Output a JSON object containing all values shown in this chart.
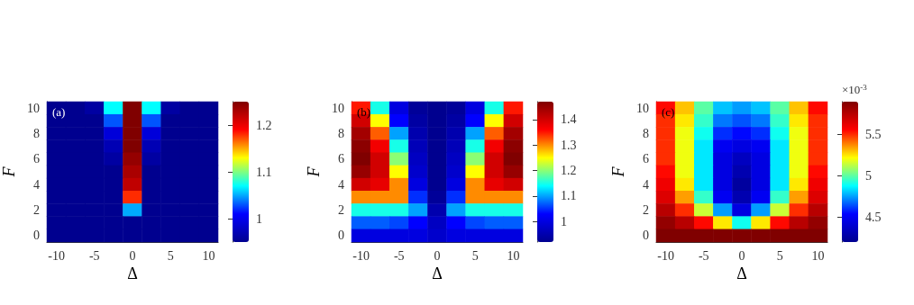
{
  "chart_data": [
    {
      "type": "heatmap",
      "xlabel": "Δ",
      "ylabel": "F",
      "annotations": [
        "(a)"
      ],
      "categories": [
        "-10",
        null,
        "-5",
        null,
        "0",
        null,
        "5",
        null,
        "10"
      ],
      "y_categories": [
        "10",
        null,
        "8",
        null,
        "6",
        null,
        "4",
        null,
        "2",
        null,
        "0"
      ],
      "cells": [
        [
          0.95,
          0.95,
          0.96,
          1.07,
          1.25,
          1.07,
          0.96,
          0.95,
          0.95
        ],
        [
          0.95,
          0.95,
          0.95,
          1.03,
          1.25,
          1.03,
          0.95,
          0.95,
          0.95
        ],
        [
          0.95,
          0.95,
          0.95,
          0.99,
          1.25,
          0.99,
          0.95,
          0.95,
          0.95
        ],
        [
          0.95,
          0.95,
          0.95,
          0.97,
          1.25,
          0.97,
          0.95,
          0.95,
          0.95
        ],
        [
          0.95,
          0.95,
          0.95,
          0.96,
          1.24,
          0.96,
          0.95,
          0.95,
          0.95
        ],
        [
          0.95,
          0.95,
          0.95,
          0.95,
          1.23,
          0.95,
          0.95,
          0.95,
          0.95
        ],
        [
          0.95,
          0.95,
          0.95,
          0.95,
          1.22,
          0.95,
          0.95,
          0.95,
          0.95
        ],
        [
          0.95,
          0.95,
          0.95,
          0.95,
          1.18,
          0.95,
          0.95,
          0.95,
          0.95
        ],
        [
          0.95,
          0.95,
          0.95,
          0.95,
          1.05,
          0.95,
          0.95,
          0.95,
          0.95
        ],
        [
          0.95,
          0.95,
          0.95,
          0.95,
          0.95,
          0.95,
          0.95,
          0.95,
          0.95
        ],
        [
          0.95,
          0.95,
          0.95,
          0.95,
          0.95,
          0.95,
          0.95,
          0.95,
          0.95
        ]
      ],
      "clim": [
        0.95,
        1.25
      ],
      "cticks": [
        1,
        1.1,
        1.2
      ]
    },
    {
      "type": "heatmap",
      "xlabel": "Δ",
      "ylabel": "F",
      "annotations": [
        "(b)"
      ],
      "categories": [
        "-10",
        null,
        "-5",
        null,
        "0",
        null,
        "5",
        null,
        "10"
      ],
      "y_categories": [
        "10",
        null,
        "8",
        null,
        "6",
        null,
        "4",
        null,
        "2",
        null,
        "0"
      ],
      "cells": [
        [
          1.35,
          1.15,
          1.0,
          0.93,
          0.92,
          0.93,
          1.0,
          1.15,
          1.35
        ],
        [
          1.4,
          1.25,
          1.03,
          0.94,
          0.92,
          0.94,
          1.03,
          1.25,
          1.4
        ],
        [
          1.44,
          1.32,
          1.1,
          0.95,
          0.92,
          0.95,
          1.1,
          1.32,
          1.44
        ],
        [
          1.46,
          1.37,
          1.15,
          0.96,
          0.92,
          0.96,
          1.15,
          1.37,
          1.46
        ],
        [
          1.47,
          1.4,
          1.2,
          0.97,
          0.92,
          0.97,
          1.2,
          1.4,
          1.47
        ],
        [
          1.45,
          1.4,
          1.25,
          0.98,
          0.92,
          0.98,
          1.25,
          1.4,
          1.45
        ],
        [
          1.4,
          1.38,
          1.3,
          1.0,
          0.92,
          1.0,
          1.3,
          1.38,
          1.4
        ],
        [
          1.3,
          1.3,
          1.3,
          1.05,
          0.93,
          1.05,
          1.3,
          1.3,
          1.3
        ],
        [
          1.15,
          1.15,
          1.15,
          1.1,
          0.95,
          1.1,
          1.15,
          1.15,
          1.15
        ],
        [
          1.07,
          1.07,
          1.06,
          1.03,
          0.97,
          1.03,
          1.06,
          1.07,
          1.07
        ],
        [
          1.0,
          1.0,
          1.0,
          1.0,
          0.98,
          1.0,
          1.0,
          1.0,
          1.0
        ]
      ],
      "clim": [
        0.92,
        1.47
      ],
      "cticks": [
        1,
        1.1,
        1.2,
        1.3,
        1.4
      ]
    },
    {
      "type": "heatmap",
      "xlabel": "Δ",
      "ylabel": "F",
      "annotations": [
        "(c)"
      ],
      "clabel": "×10$^{-3}$",
      "categories": [
        "-10",
        null,
        "-5",
        null,
        "0",
        null,
        "5",
        null,
        "10"
      ],
      "y_categories": [
        "10",
        null,
        "8",
        null,
        "6",
        null,
        "4",
        null,
        "2",
        null,
        "0"
      ],
      "cells": [
        [
          5.55,
          5.3,
          5.0,
          4.8,
          4.75,
          4.8,
          5.0,
          5.3,
          5.55
        ],
        [
          5.5,
          5.25,
          4.95,
          4.7,
          4.65,
          4.7,
          4.95,
          5.25,
          5.5
        ],
        [
          5.5,
          5.2,
          4.9,
          4.6,
          4.55,
          4.6,
          4.9,
          5.2,
          5.5
        ],
        [
          5.5,
          5.2,
          4.85,
          4.5,
          4.45,
          4.5,
          4.85,
          5.2,
          5.5
        ],
        [
          5.5,
          5.2,
          4.85,
          4.45,
          4.35,
          4.45,
          4.85,
          5.2,
          5.5
        ],
        [
          5.55,
          5.2,
          4.85,
          4.45,
          4.3,
          4.45,
          4.85,
          5.2,
          5.55
        ],
        [
          5.6,
          5.25,
          4.85,
          4.45,
          4.25,
          4.45,
          4.85,
          5.25,
          5.6
        ],
        [
          5.65,
          5.35,
          4.95,
          4.5,
          4.3,
          4.5,
          4.95,
          5.35,
          5.65
        ],
        [
          5.75,
          5.5,
          5.15,
          4.75,
          4.45,
          4.75,
          5.15,
          5.5,
          5.75
        ],
        [
          5.85,
          5.75,
          5.55,
          5.25,
          4.9,
          5.25,
          5.55,
          5.75,
          5.85
        ],
        [
          5.9,
          5.9,
          5.9,
          5.9,
          5.9,
          5.9,
          5.9,
          5.9,
          5.9
        ]
      ],
      "clim": [
        4.2,
        5.9
      ],
      "cticks": [
        4.5,
        5,
        5.5
      ]
    }
  ]
}
